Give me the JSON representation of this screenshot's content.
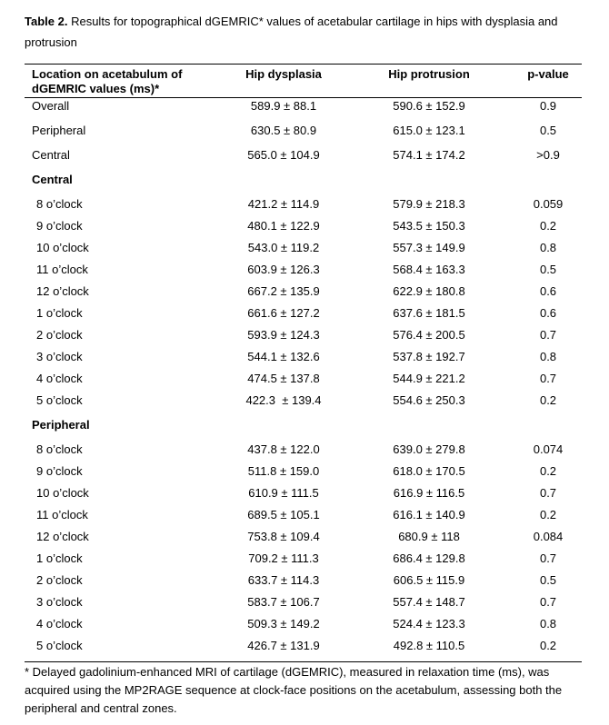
{
  "caption": {
    "label": "Table 2.",
    "text": "Results for topographical dGEMRIC* values of acetabular cartilage in hips with dysplasia and protrusion"
  },
  "table": {
    "header": [
      "Location on acetabulum of dGEMRIC values (ms)*",
      "Hip dysplasia",
      "Hip protrusion",
      "p-value"
    ],
    "summary": [
      [
        "Overall",
        "589.9 ± 88.1",
        "590.6 ± 152.9",
        "0.9"
      ],
      [
        "Peripheral",
        "630.5 ± 80.9",
        "615.0 ± 123.1",
        "0.5"
      ],
      [
        "Central",
        "565.0 ± 104.9",
        "574.1 ± 174.2",
        ">0.9"
      ]
    ],
    "sections": [
      {
        "title": "Central",
        "rows": [
          [
            "8 o’clock",
            "421.2 ± 114.9",
            "579.9 ± 218.3",
            "0.059"
          ],
          [
            "9 o’clock",
            "480.1 ± 122.9",
            "543.5 ± 150.3",
            "0.2"
          ],
          [
            "10 o’clock",
            "543.0 ± 119.2",
            "557.3 ± 149.9",
            "0.8"
          ],
          [
            "11 o’clock",
            "603.9 ± 126.3",
            "568.4 ± 163.3",
            "0.5"
          ],
          [
            "12 o’clock",
            "667.2 ± 135.9",
            "622.9 ± 180.8",
            "0.6"
          ],
          [
            "1 o’clock",
            "661.6 ± 127.2",
            "637.6 ± 181.5",
            "0.6"
          ],
          [
            "2 o’clock",
            "593.9 ± 124.3",
            "576.4 ± 200.5",
            "0.7"
          ],
          [
            "3 o’clock",
            "544.1 ± 132.6",
            "537.8 ± 192.7",
            "0.8"
          ],
          [
            "4 o’clock",
            "474.5 ± 137.8",
            "544.9 ± 221.2",
            "0.7"
          ],
          [
            "5 o’clock",
            "422.3  ± 139.4",
            "554.6 ± 250.3",
            "0.2"
          ]
        ]
      },
      {
        "title": "Peripheral",
        "rows": [
          [
            "8 o’clock",
            "437.8 ± 122.0",
            "639.0 ± 279.8",
            "0.074"
          ],
          [
            "9 o’clock",
            "511.8 ± 159.0",
            "618.0 ± 170.5",
            "0.2"
          ],
          [
            "10 o’clock",
            "610.9 ± 111.5",
            "616.9 ± 116.5",
            "0.7"
          ],
          [
            "11 o’clock",
            "689.5 ± 105.1",
            "616.1 ± 140.9",
            "0.2"
          ],
          [
            "12 o’clock",
            "753.8 ± 109.4",
            "680.9 ± 118",
            "0.084"
          ],
          [
            "1 o’clock",
            "709.2 ± 111.3",
            "686.4 ± 129.8",
            "0.7"
          ],
          [
            "2 o’clock",
            "633.7 ± 114.3",
            "606.5 ± 115.9",
            "0.5"
          ],
          [
            "3 o’clock",
            "583.7 ± 106.7",
            "557.4 ± 148.7",
            "0.7"
          ],
          [
            "4 o’clock",
            "509.3 ± 149.2",
            "524.4 ± 123.3",
            "0.8"
          ],
          [
            "5 o’clock",
            "426.7 ± 131.9",
            "492.8 ± 110.5",
            "0.2"
          ]
        ]
      }
    ]
  },
  "footnote": "* Delayed gadolinium-enhanced MRI of cartilage (dGEMRIC), measured in relaxation time (ms), was acquired using the MP2RAGE sequence at clock-face positions on the acetabulum, assessing both the peripheral and central zones."
}
